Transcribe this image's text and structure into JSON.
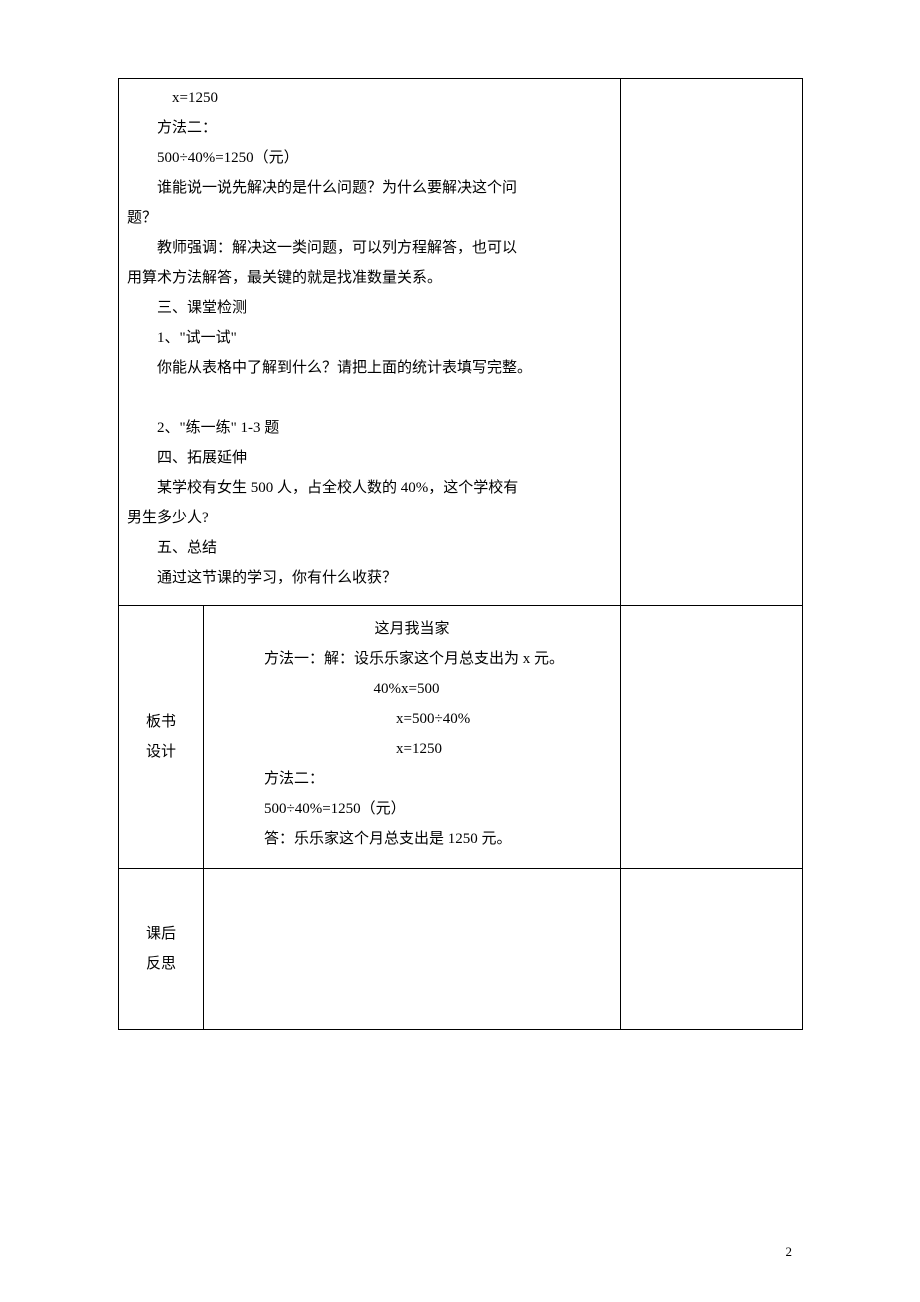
{
  "row1": {
    "lines": [
      {
        "cls": "indent-more",
        "text": "x=1250"
      },
      {
        "cls": "indent",
        "text": "方法二："
      },
      {
        "cls": "indent",
        "text": "500÷40%=1250（元）"
      },
      {
        "cls": "indent",
        "text": "谁能说一说先解决的是什么问题？为什么要解决这个问"
      },
      {
        "cls": "",
        "text": "题？"
      },
      {
        "cls": "indent",
        "text": "教师强调：解决这一类问题，可以列方程解答，也可以"
      },
      {
        "cls": "",
        "text": "用算术方法解答，最关键的就是找准数量关系。"
      },
      {
        "cls": "indent",
        "text": "三、课堂检测"
      },
      {
        "cls": "indent",
        "text": "1、\"试一试\""
      },
      {
        "cls": "indent",
        "text": "你能从表格中了解到什么？请把上面的统计表填写完整。"
      },
      {
        "cls": "",
        "text": " "
      },
      {
        "cls": "indent",
        "text": "2、\"练一练\" 1-3 题"
      },
      {
        "cls": "indent",
        "text": "四、拓展延伸"
      },
      {
        "cls": "indent",
        "text": "某学校有女生 500 人，占全校人数的 40%，这个学校有"
      },
      {
        "cls": "",
        "text": "男生多少人?"
      },
      {
        "cls": "indent",
        "text": "五、总结"
      },
      {
        "cls": "indent",
        "text": "通过这节课的学习，你有什么收获？"
      }
    ]
  },
  "row2": {
    "label_line1": "板书",
    "label_line2": "设计",
    "lines": [
      {
        "cls": "center-title",
        "text": "这月我当家"
      },
      {
        "cls": "math-indent0",
        "text": "方法一：解：设乐乐家这个月总支出为 x 元。"
      },
      {
        "cls": "math-indent1",
        "text": "40%x=500"
      },
      {
        "cls": "math-indent2",
        "text": "x=500÷40%"
      },
      {
        "cls": "math-indent2",
        "text": "x=1250"
      },
      {
        "cls": "math-indent0",
        "text": "方法二："
      },
      {
        "cls": "math-indent0",
        "text": "  500÷40%=1250（元）"
      },
      {
        "cls": "math-indent0",
        "text": "答：乐乐家这个月总支出是 1250 元。"
      }
    ]
  },
  "row3": {
    "label_line1": "课后",
    "label_line2": "反思"
  },
  "page_number": "2"
}
